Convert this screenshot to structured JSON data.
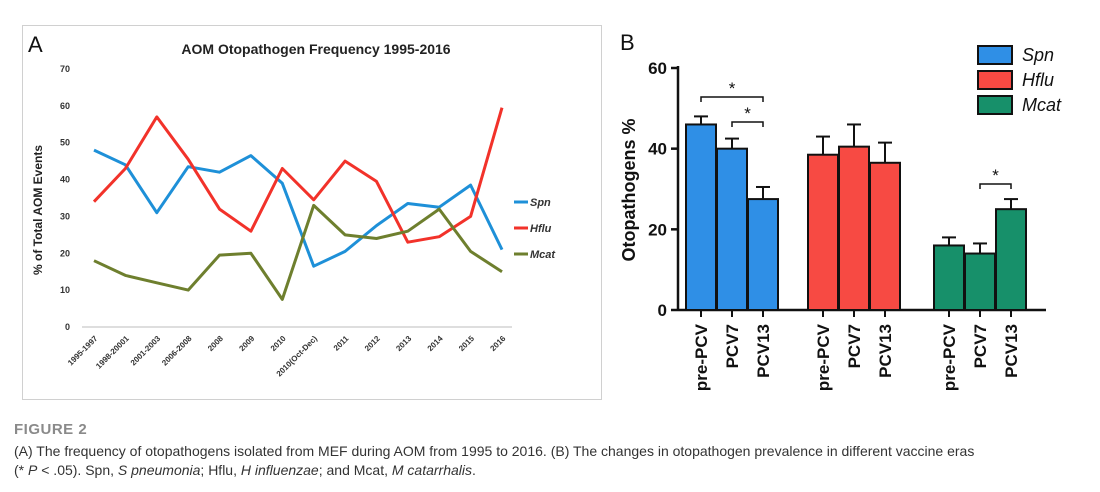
{
  "figure": {
    "caption_title": "FIGURE 2",
    "caption": {
      "line1": "(A) The frequency of otopathogens isolated from MEF during AOM from 1995 to 2016. (B) The changes in otopathogen prevalence in different vaccine eras",
      "p_open": "(* ",
      "p_sym": "P",
      "p_value": " < .05). Spn, ",
      "spn_name": "S pneumonia",
      "sep1": "; Hflu, ",
      "hflu_name": "H influenzae",
      "sep2": "; and Mcat, ",
      "mcat_name": "M catarrhalis",
      "end": "."
    }
  },
  "chart_data": [
    {
      "panel_label": "A",
      "type": "line",
      "title": "AOM Otopathogen Frequency 1995-2016",
      "xlabel": "",
      "ylabel": "% of Total AOM Events",
      "ylim": [
        0,
        70
      ],
      "yticks": [
        0,
        10,
        20,
        30,
        40,
        50,
        60,
        70
      ],
      "categories": [
        "1995-1997",
        "1998-20001",
        "2001-2003",
        "2006-2008",
        "2008",
        "2009",
        "2010",
        "2010(Oct-Dec)",
        "2011",
        "2012",
        "2013",
        "2014",
        "2015",
        "2016"
      ],
      "series": [
        {
          "name": "Spn",
          "color": "#1e90d8",
          "values": [
            48,
            44,
            31,
            43.5,
            42,
            46.5,
            39,
            16.5,
            20.5,
            27.5,
            33.5,
            32.5,
            38.5,
            21
          ]
        },
        {
          "name": "Hflu",
          "color": "#f2322a",
          "values": [
            34,
            43,
            57,
            45.5,
            32,
            26,
            43,
            34.5,
            45,
            39.5,
            23,
            24.5,
            30,
            59.5
          ]
        },
        {
          "name": "Mcat",
          "color": "#6e7f2e",
          "values": [
            18,
            14,
            12,
            10,
            19.5,
            20,
            7.5,
            33,
            25,
            24,
            26,
            32,
            20.5,
            15
          ]
        }
      ],
      "grid": false,
      "legend_position": "right"
    },
    {
      "panel_label": "B",
      "type": "bar",
      "ylabel": "Otopathogens %",
      "ylim": [
        0,
        60
      ],
      "yticks": [
        0,
        20,
        40,
        60
      ],
      "groups": [
        {
          "name": "Spn",
          "color": "#2f8fe6",
          "categories": [
            "pre-PCV",
            "PCV7",
            "PCV13"
          ],
          "values": [
            46,
            40,
            27.5
          ],
          "errors": [
            2,
            2.5,
            3
          ]
        },
        {
          "name": "Hflu",
          "color": "#f74a43",
          "categories": [
            "pre-PCV",
            "PCV7",
            "PCV13"
          ],
          "values": [
            38.5,
            40.5,
            36.5
          ],
          "errors": [
            4.5,
            5.5,
            5
          ]
        },
        {
          "name": "Mcat",
          "color": "#17906a",
          "categories": [
            "pre-PCV",
            "PCV7",
            "PCV13"
          ],
          "values": [
            16,
            14,
            25
          ],
          "errors": [
            2,
            2.5,
            2.5
          ]
        }
      ],
      "significance": [
        {
          "group": 0,
          "from": 0,
          "to": 2,
          "label": "*"
        },
        {
          "group": 0,
          "from": 1,
          "to": 2,
          "label": "*"
        },
        {
          "group": 2,
          "from": 1,
          "to": 2,
          "label": "*"
        }
      ],
      "legend_position": "top-right"
    }
  ]
}
